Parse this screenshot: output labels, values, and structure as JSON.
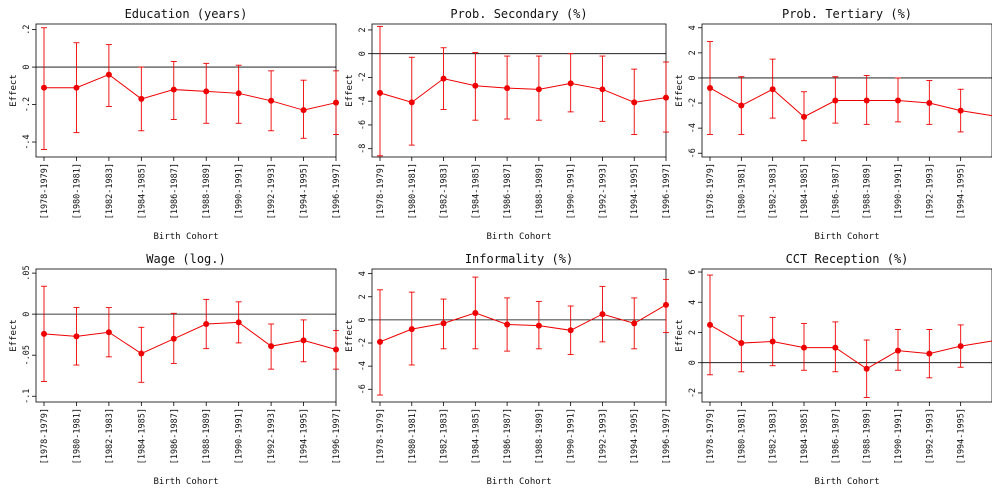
{
  "colors": {
    "series": "#ee0000",
    "axis": "#000000",
    "frame": "#000000"
  },
  "chart_data": [
    {
      "type": "line",
      "title": "Education (years)",
      "xlabel": "Birth Cohort",
      "ylabel": "Effect",
      "categories": [
        "[1978-1979]",
        "[1980-1981]",
        "[1982-1983]",
        "[1984-1985]",
        "[1986-1987]",
        "[1988-1989]",
        "[1990-1991]",
        "[1992-1993]",
        "[1994-1995]",
        "[1996-1997]"
      ],
      "yticks": [
        ".2",
        "0",
        "-.2",
        "-.4"
      ],
      "ytick_values": [
        0.2,
        0,
        -0.2,
        -0.4
      ],
      "ylim": [
        -0.48,
        0.23
      ],
      "reference_line": 0,
      "values": [
        -0.11,
        -0.11,
        -0.04,
        -0.17,
        -0.12,
        -0.13,
        -0.14,
        -0.18,
        -0.23,
        -0.19
      ],
      "ci_low": [
        -0.44,
        -0.35,
        -0.21,
        -0.34,
        -0.28,
        -0.3,
        -0.3,
        -0.34,
        -0.38,
        -0.36
      ],
      "ci_high": [
        0.21,
        0.13,
        0.12,
        0.0,
        0.03,
        0.02,
        0.01,
        -0.02,
        -0.07,
        -0.02
      ]
    },
    {
      "type": "line",
      "title": "Prob. Secondary (%)",
      "xlabel": "Birth Cohort",
      "ylabel": "Effect",
      "categories": [
        "[1978-1979]",
        "[1980-1981]",
        "[1982-1983]",
        "[1984-1985]",
        "[1986-1987]",
        "[1988-1989]",
        "[1990-1991]",
        "[1992-1993]",
        "[1994-1995]",
        "[1996-1997]"
      ],
      "yticks": [
        "2",
        "0",
        "-2",
        "-4",
        "-6",
        "-8"
      ],
      "ytick_values": [
        2,
        0,
        -2,
        -4,
        -6,
        -8
      ],
      "ylim": [
        -8.7,
        2.5
      ],
      "reference_line": 0,
      "values": [
        -3.3,
        -4.1,
        -2.1,
        -2.7,
        -2.9,
        -3.0,
        -2.5,
        -3.0,
        -4.1,
        -3.7
      ],
      "ci_low": [
        -8.6,
        -7.7,
        -4.7,
        -5.6,
        -5.5,
        -5.6,
        -4.9,
        -5.7,
        -6.8,
        -6.6
      ],
      "ci_high": [
        2.3,
        -0.3,
        0.5,
        0.1,
        -0.2,
        -0.2,
        0.0,
        -0.2,
        -1.3,
        -0.7
      ]
    },
    {
      "type": "line",
      "title": "Prob. Tertiary (%)",
      "xlabel": "Birth Cohort",
      "ylabel": "Effect",
      "categories": [
        "[1978-1979]",
        "[1980-1981]",
        "[1982-1983]",
        "[1984-1985]",
        "[1986-1987]",
        "[1988-1989]",
        "[1990-1991]",
        "[1992-1993]",
        "[1994-1995]"
      ],
      "yticks": [
        "4",
        "2",
        "0",
        "-2",
        "-4",
        "-6"
      ],
      "ytick_values": [
        4,
        2,
        0,
        -2,
        -4,
        -6
      ],
      "ylim": [
        -6.3,
        4.3
      ],
      "reference_line": 0,
      "values": [
        -0.8,
        -2.2,
        -0.9,
        -3.1,
        -1.8,
        -1.8,
        -1.8,
        -2.0,
        -2.6
      ],
      "ci_low": [
        -4.5,
        -4.5,
        -3.2,
        -5.0,
        -3.6,
        -3.7,
        -3.5,
        -3.7,
        -4.3
      ],
      "ci_high": [
        2.9,
        0.1,
        1.5,
        -1.1,
        0.1,
        0.2,
        0.0,
        -0.2,
        -0.9
      ]
    },
    {
      "type": "line",
      "title": "Wage (log.)",
      "xlabel": "Birth Cohort",
      "ylabel": "Effect",
      "categories": [
        "[1978-1979]",
        "[1980-1981]",
        "[1982-1983]",
        "[1984-1985]",
        "[1986-1987]",
        "[1988-1989]",
        "[1990-1991]",
        "[1992-1993]",
        "[1994-1995]",
        "[1996-1997]"
      ],
      "yticks": [
        ".05",
        "0",
        "-.05",
        "-.1"
      ],
      "ytick_values": [
        0.05,
        0,
        -0.05,
        -0.1
      ],
      "ylim": [
        -0.107,
        0.055
      ],
      "reference_line": 0,
      "values": [
        -0.024,
        -0.027,
        -0.022,
        -0.048,
        -0.03,
        -0.012,
        -0.01,
        -0.039,
        -0.032,
        -0.043
      ],
      "ci_low": [
        -0.082,
        -0.062,
        -0.052,
        -0.083,
        -0.06,
        -0.042,
        -0.035,
        -0.067,
        -0.058,
        -0.067
      ],
      "ci_high": [
        0.034,
        0.008,
        0.008,
        -0.016,
        0.001,
        0.018,
        0.015,
        -0.012,
        -0.007,
        -0.02
      ]
    },
    {
      "type": "line",
      "title": "Informality (%)",
      "xlabel": "Birth Cohort",
      "ylabel": "Effect",
      "categories": [
        "[1978-1979]",
        "[1980-1981]",
        "[1982-1983]",
        "[1984-1985]",
        "[1986-1987]",
        "[1988-1989]",
        "[1990-1991]",
        "[1992-1993]",
        "[1994-1995]",
        "[1996-1997]"
      ],
      "yticks": [
        "4",
        "2",
        "0",
        "-2",
        "-4",
        "-6"
      ],
      "ytick_values": [
        4,
        2,
        0,
        -2,
        -4,
        -6
      ],
      "ylim": [
        -7.1,
        4.4
      ],
      "reference_line": 0,
      "values": [
        -1.9,
        -0.8,
        -0.3,
        0.6,
        -0.4,
        -0.5,
        -0.9,
        0.5,
        -0.3,
        1.3
      ],
      "ci_low": [
        -6.5,
        -3.9,
        -2.5,
        -2.5,
        -2.7,
        -2.5,
        -3.0,
        -1.9,
        -2.5,
        -1.1
      ],
      "ci_high": [
        2.6,
        2.4,
        1.8,
        3.7,
        1.9,
        1.6,
        1.2,
        2.9,
        1.9,
        3.5
      ]
    },
    {
      "type": "line",
      "title": "CCT Reception (%)",
      "xlabel": "Birth Cohort",
      "ylabel": "Effect",
      "categories": [
        "[1978-1979]",
        "[1980-1981]",
        "[1982-1983]",
        "[1984-1985]",
        "[1986-1987]",
        "[1988-1989]",
        "[1990-1991]",
        "[1992-1993]",
        "[1994-1995]"
      ],
      "yticks": [
        "6",
        "4",
        "2",
        "0",
        "-2"
      ],
      "ytick_values": [
        6,
        4,
        2,
        0,
        -2
      ],
      "ylim": [
        -2.6,
        6.2
      ],
      "reference_line": 0,
      "values": [
        2.5,
        1.3,
        1.4,
        1.0,
        1.0,
        -0.4,
        0.8,
        0.6,
        1.1
      ],
      "ci_low": [
        -0.8,
        -0.6,
        -0.2,
        -0.5,
        -0.6,
        -2.3,
        -0.5,
        -1.0,
        -0.3
      ],
      "ci_high": [
        5.8,
        3.1,
        3.0,
        2.6,
        2.7,
        1.5,
        2.2,
        2.2,
        2.5
      ]
    }
  ]
}
